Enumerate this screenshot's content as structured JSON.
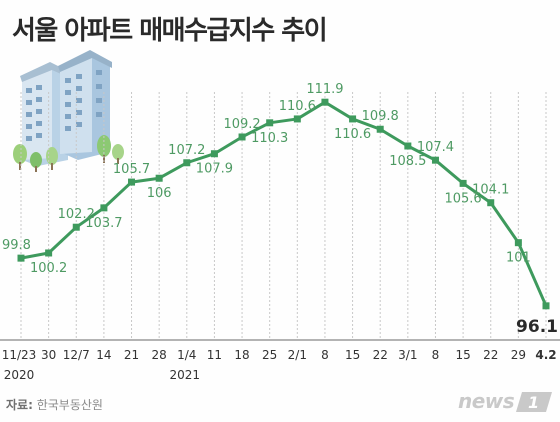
{
  "header": {
    "title": "서울 아파트 매매수급지수 추이"
  },
  "source": {
    "label": "자료:",
    "text": "한국부동산원"
  },
  "logo": {
    "brand": "news",
    "suffix": "1"
  },
  "colors": {
    "series": "#3e9a5d",
    "label": "#4e9a63",
    "grid": "#c8c8c8",
    "text": "#2a2a2a"
  },
  "chart_data": {
    "type": "line",
    "title": "서울 아파트 매매수급지수 추이",
    "x": [
      "11/23",
      "30",
      "12/7",
      "14",
      "21",
      "28",
      "1/4",
      "11",
      "18",
      "25",
      "2/1",
      "8",
      "15",
      "22",
      "3/1",
      "8",
      "15",
      "22",
      "29",
      "4.2"
    ],
    "year_labels": [
      {
        "at_index": 0,
        "text": "2020"
      },
      {
        "at_index": 6,
        "text": "2021"
      }
    ],
    "series": [
      {
        "values": [
          99.8,
          100.2,
          102.2,
          103.7,
          105.7,
          106,
          107.2,
          107.9,
          109.2,
          110.3,
          110.6,
          111.9,
          110.6,
          109.8,
          108.5,
          107.4,
          105.6,
          104.1,
          101,
          96.1
        ]
      }
    ],
    "value_labels": [
      "99.8",
      "100.2",
      "102.2",
      "103.7",
      "105.7",
      "106",
      "107.2",
      "107.9",
      "109.2",
      "110.3",
      "110.6",
      "111.9",
      "110.6",
      "109.8",
      "108.5",
      "107.4",
      "105.6",
      "104.1",
      "101",
      "96.1"
    ],
    "label_positions": [
      "above",
      "below",
      "above",
      "below",
      "above",
      "below",
      "above",
      "below",
      "above",
      "below",
      "above",
      "above",
      "below",
      "above",
      "below",
      "above",
      "below",
      "above",
      "below",
      "below"
    ],
    "ylim": [
      95,
      113
    ],
    "grid": "vertical-dashed",
    "xlabel": "",
    "ylabel": ""
  }
}
